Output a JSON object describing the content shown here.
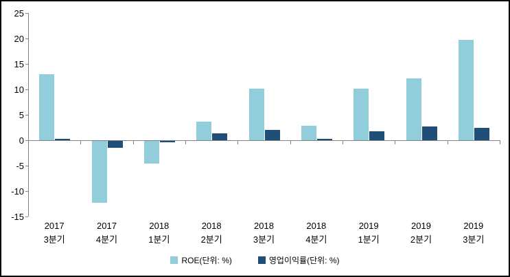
{
  "chart_data": {
    "type": "bar",
    "title": "",
    "xlabel": "",
    "ylabel": "",
    "categories": [
      [
        "2017",
        "3분기"
      ],
      [
        "2017",
        "4분기"
      ],
      [
        "2018",
        "1분기"
      ],
      [
        "2018",
        "2분기"
      ],
      [
        "2018",
        "3분기"
      ],
      [
        "2018",
        "4분기"
      ],
      [
        "2019",
        "1분기"
      ],
      [
        "2019",
        "2분기"
      ],
      [
        "2019",
        "3분기"
      ]
    ],
    "series": [
      {
        "name": "ROE(단위: %)",
        "color": "#92CDDC",
        "values": [
          13.0,
          -12.1,
          -4.4,
          3.6,
          10.2,
          2.8,
          10.1,
          12.2,
          19.7
        ]
      },
      {
        "name": "영업이익률(단위: %)",
        "color": "#1F4E79",
        "values": [
          0.3,
          -1.3,
          -0.3,
          1.3,
          2.0,
          0.3,
          1.8,
          2.7,
          2.4
        ]
      }
    ],
    "ylim": [
      -15,
      25
    ],
    "y_ticks": [
      25,
      20,
      15,
      10,
      5,
      0,
      -5,
      -10,
      -15
    ],
    "grid": false,
    "legend_position": "bottom",
    "colors": {
      "axis": "#808080",
      "text": "#000000",
      "background": "#ffffff",
      "border": "#000000"
    }
  }
}
